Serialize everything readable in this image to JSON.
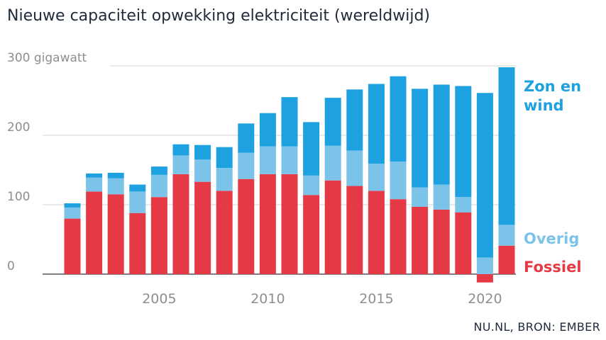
{
  "chart_data": {
    "type": "bar",
    "stacked": true,
    "title": "Nieuwe capaciteit opwekking elektriciteit (wereldwijd)",
    "source": "NU.NL, BRON: EMBER",
    "ylim": [
      0,
      300
    ],
    "yticks": [
      0,
      100,
      200,
      300
    ],
    "ytick_labels": [
      "0",
      "100",
      "200",
      "300 gigawatt"
    ],
    "xticks": [
      2005,
      2010,
      2015,
      2020
    ],
    "x": [
      2001,
      2002,
      2003,
      2004,
      2005,
      2006,
      2007,
      2008,
      2009,
      2010,
      2011,
      2012,
      2013,
      2014,
      2015,
      2016,
      2017,
      2018,
      2019,
      2020,
      2021
    ],
    "series": [
      {
        "name": "Fossiel",
        "color": "#e63946",
        "values": [
          80,
          119,
          115,
          88,
          111,
          144,
          133,
          120,
          137,
          144,
          144,
          114,
          135,
          127,
          120,
          108,
          97,
          93,
          89,
          -12,
          41
        ]
      },
      {
        "name": "Overig",
        "color": "#7cc3ea",
        "values": [
          16,
          20,
          23,
          31,
          32,
          27,
          32,
          33,
          38,
          40,
          40,
          28,
          50,
          51,
          39,
          54,
          28,
          36,
          22,
          24,
          30
        ]
      },
      {
        "name": "Zon en wind",
        "color": "#1ea1e0",
        "values": [
          6,
          6,
          8,
          10,
          12,
          16,
          21,
          30,
          42,
          48,
          71,
          77,
          69,
          88,
          115,
          123,
          142,
          144,
          160,
          237,
          227
        ]
      }
    ],
    "legend_placement": "right",
    "grid": true
  }
}
